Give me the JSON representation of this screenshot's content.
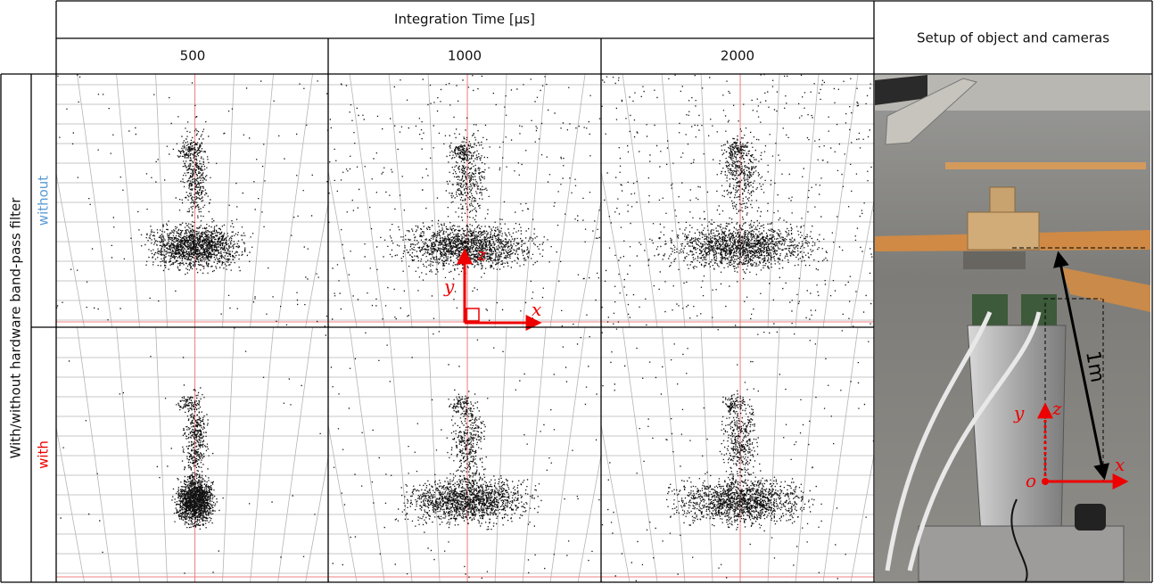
{
  "header": {
    "title": "Integration Time [µs]",
    "columns": [
      "500",
      "1000",
      "2000"
    ],
    "setup_title": "Setup of object and cameras"
  },
  "rows": {
    "label": "With/without hardware band-pass filter",
    "items": [
      "without",
      "with"
    ]
  },
  "annotations": {
    "axes_cell": [
      "z",
      "y",
      "x"
    ],
    "photo": [
      "y",
      "z",
      "x",
      "o",
      "1m"
    ]
  }
}
